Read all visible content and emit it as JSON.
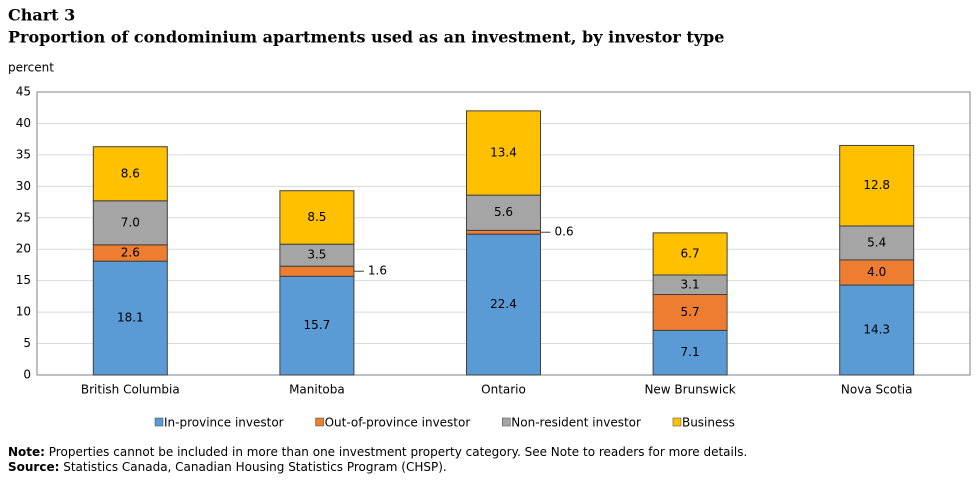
{
  "chart_data": {
    "type": "stacked-bar",
    "title": "Chart 3",
    "subtitle": "Proportion of condominium  apartments used as an investment, by investor type",
    "y_label": "percent",
    "categories": [
      "British Columbia",
      "Manitoba",
      "Ontario",
      "New Brunswick",
      "Nova Scotia"
    ],
    "series": [
      {
        "name": "In-province investor",
        "color": "#5b9bd5",
        "values": [
          18.1,
          15.7,
          22.4,
          7.1,
          14.3
        ],
        "value_labels": [
          "18.1",
          "15.7",
          "22.4",
          "7.1",
          "14.3"
        ]
      },
      {
        "name": "Out-of-province investor",
        "color": "#ed7d31",
        "values": [
          2.6,
          1.6,
          0.6,
          5.7,
          4.0
        ],
        "value_labels": [
          "2.6",
          "1.6",
          "0.6",
          "5.7",
          "4.0"
        ]
      },
      {
        "name": "Non-resident investor",
        "color": "#a5a5a5",
        "values": [
          7.0,
          3.5,
          5.6,
          3.1,
          5.4
        ],
        "value_labels": [
          "7.0",
          "3.5",
          "5.6",
          "3.1",
          "5.4"
        ]
      },
      {
        "name": "Business",
        "color": "#ffc000",
        "values": [
          8.6,
          8.5,
          13.4,
          6.7,
          12.8
        ],
        "value_labels": [
          "8.6",
          "8.5",
          "13.4",
          "6.7",
          "12.8"
        ]
      }
    ],
    "ylim": [
      0,
      45
    ],
    "yticks": [
      0,
      5,
      10,
      15,
      20,
      25,
      30,
      35,
      40,
      45
    ],
    "grid": true,
    "legend": "bottom",
    "notes": [
      {
        "label": "Note:",
        "text": " Properties cannot be included in more than one investment property category. See Note to readers for more details."
      },
      {
        "label": "Source:",
        "text": " Statistics Canada, Canadian Housing Statistics Program (CHSP)."
      }
    ]
  }
}
